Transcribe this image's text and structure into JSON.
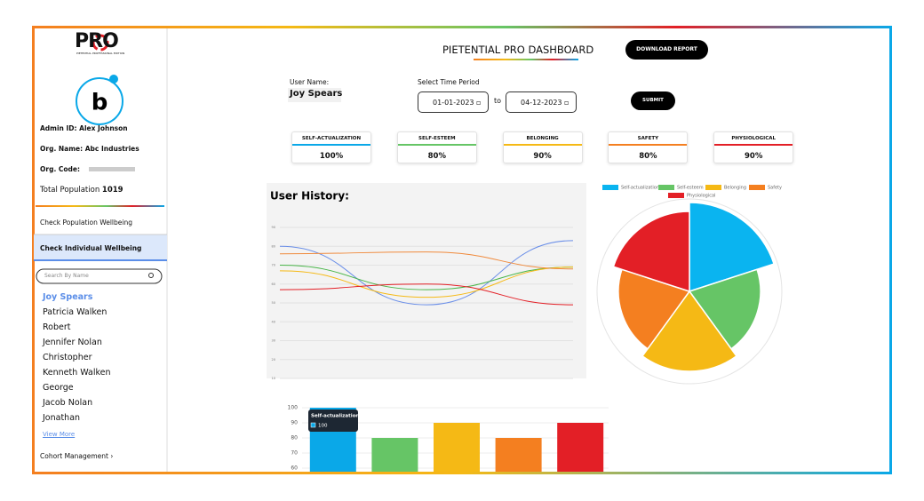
{
  "header": {
    "logo": "PRO",
    "logo_sub": "PIETENTIAL PROFESSIONAL EDITION",
    "title": "PIETENTIAL PRO DASHBOARD",
    "download": "DOWNLOAD REPORT"
  },
  "sidebar": {
    "admin": "Admin ID: Alex Johnson",
    "org_name": "Org. Name: Abc Industries",
    "org_code": "Org. Code:",
    "total_population_label": "Total Population",
    "total_population": 1019,
    "nav": [
      "Check Population Wellbeing",
      "Check Individual Wellbeing"
    ],
    "search": "Search By Name",
    "users": [
      "Joy Spears",
      "Patricia Walken",
      "Robert",
      "Jennifer Nolan",
      "Christopher",
      "Kenneth Walken",
      "George",
      "Jacob Nolan",
      "Jonathan"
    ],
    "view_more": "View More",
    "cohort": "Cohort Management ›"
  },
  "form": {
    "user_name_label": "User Name:",
    "user_name": "Joy Spears",
    "period_label": "Select Time Period",
    "from": "01-01-2023",
    "to_word": "to",
    "to": "04-12-2023",
    "submit": "SUBMIT"
  },
  "cards": [
    {
      "label": "SELF-ACTUALIZATION",
      "value": "100%",
      "color": "#0aa8e8"
    },
    {
      "label": "SELF-ESTEEM",
      "value": "80%",
      "color": "#66c566"
    },
    {
      "label": "BELONGING",
      "value": "90%",
      "color": "#f5b915"
    },
    {
      "label": "SAFETY",
      "value": "80%",
      "color": "#f47f20"
    },
    {
      "label": "PHYSIOLOGICAL",
      "value": "90%",
      "color": "#e31f26"
    }
  ],
  "chart_data": [
    {
      "type": "line",
      "title": "User History:",
      "categories": [
        null,
        null,
        null
      ],
      "ylim": [
        10,
        90
      ],
      "yticks": [
        10,
        20,
        30,
        40,
        50,
        60,
        70,
        80,
        90
      ],
      "grid": true,
      "series": [
        {
          "name": "Self-actualization",
          "color": "#6b8fe8",
          "values": [
            80,
            49,
            83
          ]
        },
        {
          "name": "Self-esteem",
          "color": "#48b548",
          "values": [
            70,
            57,
            69
          ]
        },
        {
          "name": "Belonging",
          "color": "#f5b915",
          "values": [
            67,
            53,
            69
          ]
        },
        {
          "name": "Safety",
          "color": "#f08a3c",
          "values": [
            76,
            77,
            68
          ]
        },
        {
          "name": "Physiological",
          "color": "#e31f26",
          "values": [
            57,
            60,
            49
          ]
        }
      ]
    },
    {
      "type": "polarArea",
      "categories": [
        "Self-actualization",
        "Self-esteem",
        "Belonging",
        "Safety",
        "Physiological"
      ],
      "values": [
        100,
        80,
        90,
        80,
        90
      ],
      "colors": [
        "#0ab4f0",
        "#66c566",
        "#f5b915",
        "#f47f20",
        "#e31f26"
      ],
      "rlim": [
        0,
        100
      ]
    },
    {
      "type": "bar",
      "categories": [
        null,
        null,
        null,
        null,
        null
      ],
      "values": [
        100,
        80,
        90,
        80,
        90
      ],
      "colors": [
        "#0aa8e8",
        "#66c566",
        "#f5b915",
        "#f47f20",
        "#e31f26"
      ],
      "ylim": [
        60,
        100
      ],
      "yticks": [
        60,
        70,
        80,
        90,
        100
      ],
      "grid": true,
      "tooltip": {
        "label": "Self-actualization",
        "value": 100
      }
    }
  ]
}
